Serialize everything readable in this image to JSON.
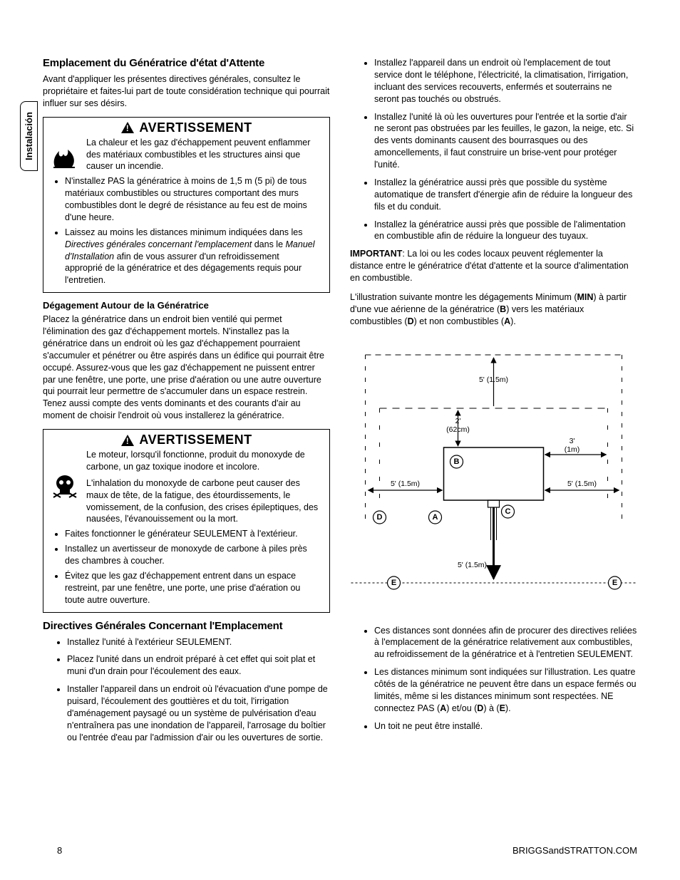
{
  "sideTab": "Instalación",
  "pageNumber": "8",
  "footerRight": "BRIGGSandSTRATTON.COM",
  "left": {
    "h1": "Emplacement du Génératrice d'état d'Attente",
    "p1": "Avant d'appliquer les présentes directives générales, consultez le propriétaire et faites-lui part de toute considération technique qui pourrait influer sur ses désirs.",
    "warn1": {
      "title": "AVERTISSEMENT",
      "text": "La chaleur et les gaz d'échappement peuvent enflammer des matériaux combustibles et les structures ainsi que causer un incendie.",
      "bullets": [
        "N'installez PAS la génératrice à moins de 1,5 m (5 pi) de tous matériaux combustibles ou structures comportant des murs combustibles dont le degré de résistance au feu est de moins d'une heure.",
        "Laissez au moins les distances minimum indiquées dans les <span class=\"italic\">Directives générales concernant l'emplacement</span> dans le <span class=\"italic\">Manuel d'Installation</span> afin de vous assurer d'un refroidissement approprié de la génératrice et des dégagements requis pour l'entretien."
      ]
    },
    "h3a": "Dégagement Autour de la Génératrice",
    "p2": "Placez la génératrice dans un endroit bien ventilé qui permet l'élimination des gaz d'échappement mortels. N'installez pas la génératrice dans un endroit où les gaz d'échappement pourraient s'accumuler et pénétrer ou être aspirés dans un édifice qui pourrait être occupé. Assurez-vous que les gaz d'échappement ne puissent entrer par une fenêtre, une porte, une prise d'aération ou une autre ouverture qui pourrait leur permettre de s'accumuler dans un espace restrein. Tenez aussi compte des vents dominants et des courants d'air au moment de choisir l'endroit où vous installerez la génératrice.",
    "warn2": {
      "title": "AVERTISSEMENT",
      "text1": "Le moteur, lorsqu'il fonctionne, produit du monoxyde de carbone, un gaz toxique inodore et incolore.",
      "text2": "L'inhalation du monoxyde de carbone peut causer des maux de tête, de la fatigue, des étourdissements, le vomissement, de la confusion, des crises épileptiques, des nausées, l'évanouissement ou la mort.",
      "bullets": [
        "Faites fonctionner le générateur SEULEMENT à l'extérieur.",
        "Installez un avertisseur de monoxyde de carbone à piles près des chambres à coucher.",
        "Évitez que les gaz d'échappement entrent dans un espace restreint, par une fenêtre, une porte, une prise d'aération ou toute autre ouverture."
      ]
    },
    "h2b": "Directives Générales Concernant l'Emplacement",
    "bulletsB": [
      "Installez l'unité à l'extérieur SEULEMENT.",
      "Placez l'unité dans un endroit préparé à cet effet qui soit plat et muni d'un drain pour l'écoulement des eaux.",
      "Installer l'appareil dans un endroit où l'évacuation d'une pompe de puisard, l'écoulement des gouttières et du toit, l'irrigation d'aménagement paysagé ou un système de pulvérisation d'eau n'entraînera pas une inondation de l'appareil, l'arrosage du boîtier ou l'entrée d'eau par l'admission d'air ou les ouvertures de sortie."
    ]
  },
  "right": {
    "bulletsTop": [
      "Installez l'appareil dans un endroit où l'emplacement de tout service dont le téléphone, l'électricité, la climatisation, l'irrigation, incluant des services recouverts, enfermés et souterrains ne seront pas touchés ou obstrués.",
      "Installez l'unité là où les ouvertures pour l'entrée et la sortie d'air ne seront pas obstruées par les feuilles, le gazon, la neige, etc. Si des vents dominants causent des bourrasques ou des amoncellements, il faut construire un brise-vent pour protéger l'unité.",
      "Installez la génératrice aussi près que possible du système automatique de transfert d'énergie afin de réduire la longueur des fils et du conduit.",
      "Installez la génératrice aussi près que possible de l'alimentation en combustible afin de réduire la longueur des tuyaux."
    ],
    "pImportant": "<b>IMPORTANT</b>: La loi ou les codes locaux peuvent réglementer la distance entre le génératrice d'état d'attente et la source d'alimentation en combustible.",
    "pIllus": "L'illustration suivante montre les dégagements Minimum (<b>MIN</b>) à partir d'une vue aérienne de la génératrice (<b>B</b>) vers les matériaux combustibles (<b>D</b>) et non combustibles (<b>A</b>).",
    "diagram": {
      "labels": {
        "top": "5' (1.5m)",
        "innerTop1": "2'",
        "innerTop2": "(62cm)",
        "innerRight1": "3'",
        "innerRight2": "(1m)",
        "left": "5' (1.5m)",
        "right": "5' (1.5m)",
        "bottom": "5' (1.5m)"
      },
      "markers": {
        "A": "A",
        "B": "B",
        "C": "C",
        "D": "D",
        "E": "E"
      }
    },
    "bulletsBottom": [
      "Ces distances sont données afin de procurer des directives reliées à l'emplacement de la génératrice relativement aux combustibles, au refroidissement de la génératrice et à l'entretien SEULEMENT.",
      "Les distances minimum sont indiquées sur l'illustration. Les quatre côtés de la génératrice ne peuvent être dans un espace fermés ou limités, même si les distances minimum sont respectées. NE connectez PAS (<b>A</b>) et/ou (<b>D</b>) à (<b>E</b>).",
      "Un toit ne peut être installé."
    ]
  }
}
